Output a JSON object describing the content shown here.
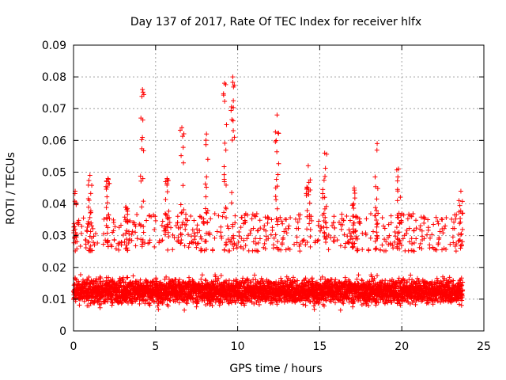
{
  "chart_data": {
    "type": "scatter",
    "title": "Day 137 of 2017, Rate Of TEC Index for receiver hlfx",
    "xlabel": "GPS time / hours",
    "ylabel": "ROTI / TECUs",
    "xlim": [
      0,
      25
    ],
    "ylim": [
      0,
      0.09
    ],
    "x_ticks": [
      "0",
      "5",
      "10",
      "15",
      "20",
      "25"
    ],
    "y_ticks": [
      "0",
      "0.01",
      "0.02",
      "0.03",
      "0.04",
      "0.05",
      "0.06",
      "0.07",
      "0.08",
      "0.09"
    ],
    "grid": true,
    "marker": "+",
    "color": "#ff0000",
    "sample_interval_hours": 0.0167,
    "time_range_hours": [
      0,
      23.7
    ],
    "background_band": [
      0.005,
      0.025
    ],
    "spikes": [
      {
        "x": 0.1,
        "y": 0.044
      },
      {
        "x": 1.0,
        "y": 0.049
      },
      {
        "x": 2.1,
        "y": 0.048
      },
      {
        "x": 3.2,
        "y": 0.039
      },
      {
        "x": 4.2,
        "y": 0.076
      },
      {
        "x": 5.7,
        "y": 0.048
      },
      {
        "x": 6.6,
        "y": 0.064
      },
      {
        "x": 8.1,
        "y": 0.062
      },
      {
        "x": 9.2,
        "y": 0.078
      },
      {
        "x": 9.7,
        "y": 0.08
      },
      {
        "x": 12.4,
        "y": 0.068
      },
      {
        "x": 14.3,
        "y": 0.052
      },
      {
        "x": 15.3,
        "y": 0.056
      },
      {
        "x": 17.1,
        "y": 0.045
      },
      {
        "x": 18.5,
        "y": 0.059
      },
      {
        "x": 19.8,
        "y": 0.051
      },
      {
        "x": 23.6,
        "y": 0.044
      }
    ]
  }
}
